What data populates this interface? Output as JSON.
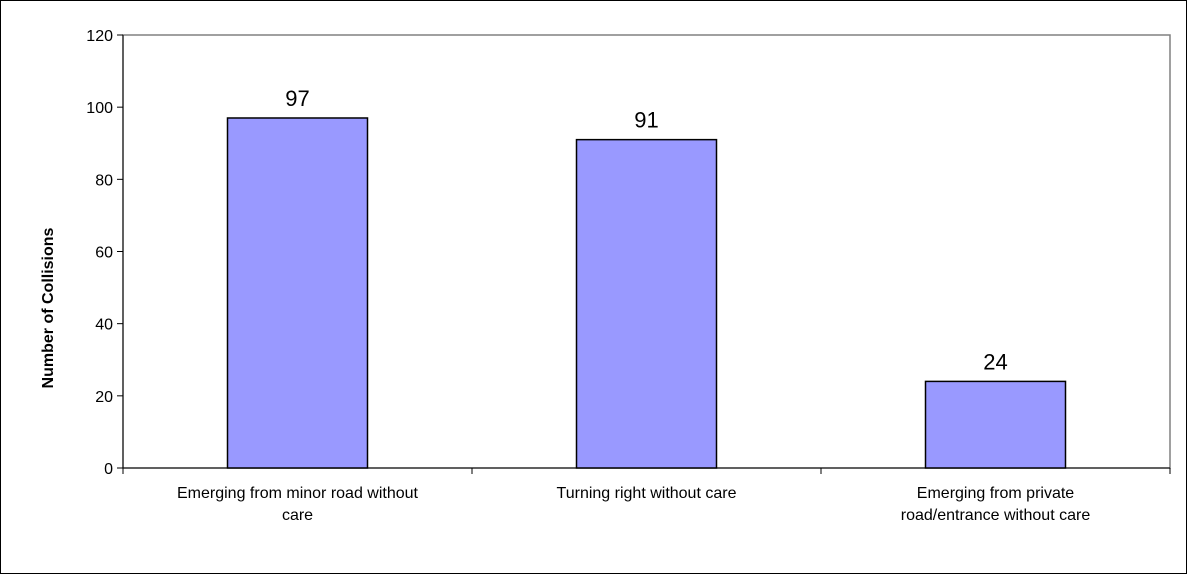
{
  "chart_data": {
    "type": "bar",
    "categories": [
      "Emerging from minor road without care",
      "Turning right without care",
      "Emerging from private road/entrance without care"
    ],
    "category_lines": [
      [
        "Emerging from minor road without",
        "care"
      ],
      [
        "Turning right without care"
      ],
      [
        "Emerging from private",
        "road/entrance without care"
      ]
    ],
    "values": [
      97,
      91,
      24
    ],
    "data_labels": [
      "97",
      "91",
      "24"
    ],
    "xlabel": "",
    "ylabel": "Number of Collisions",
    "ylim": [
      0,
      120
    ],
    "yticks": [
      0,
      20,
      40,
      60,
      80,
      100,
      120
    ],
    "grid": false,
    "legend": "none",
    "colors": {
      "bar_fill": "#9999ff",
      "bar_stroke": "#000000",
      "plot_border": "#808080"
    }
  }
}
